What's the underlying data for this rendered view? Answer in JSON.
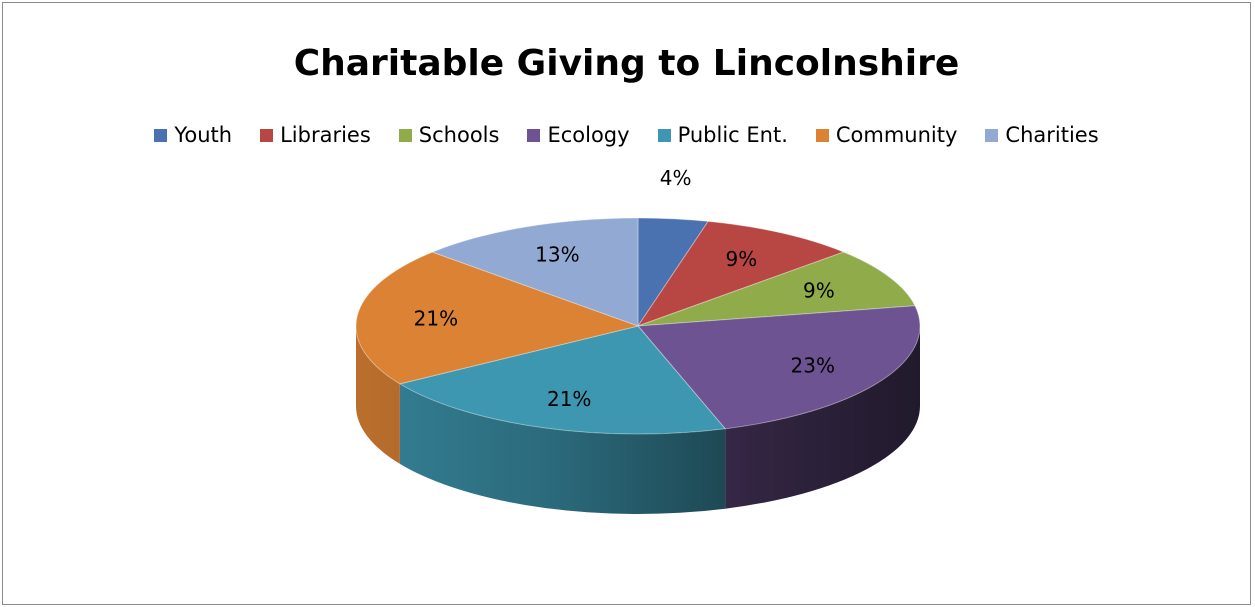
{
  "chart_data": {
    "type": "pie",
    "title": "Charitable Giving to Lincolnshire",
    "legend_position": "top",
    "three_d": true,
    "categories": [
      "Youth",
      "Libraries",
      "Schools",
      "Ecology",
      "Public Ent.",
      "Community",
      "Charities"
    ],
    "values": [
      4,
      9,
      9,
      23,
      21,
      21,
      13
    ],
    "labels": [
      "4%",
      "9%",
      "9%",
      "23%",
      "21%",
      "21%",
      "13%"
    ],
    "colors": [
      "#4a72b0",
      "#b84643",
      "#8fab4a",
      "#6e5393",
      "#3e97b0",
      "#dc8235",
      "#92a9d4"
    ]
  }
}
